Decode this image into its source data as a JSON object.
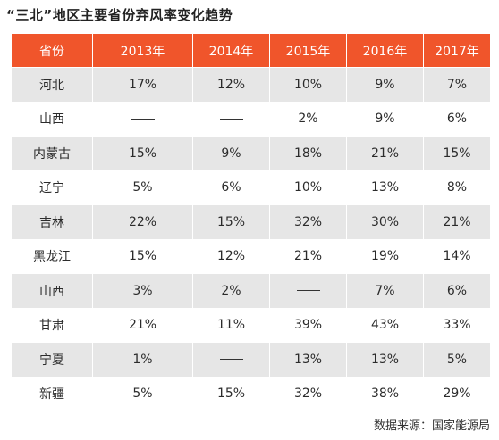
{
  "title": "“三北”地区主要省份弃风率变化趋势",
  "table": {
    "headers": [
      "省份",
      "2013年",
      "2014年",
      "2015年",
      "2016年",
      "2017年"
    ],
    "rows": [
      [
        "河北",
        "17%",
        "12%",
        "10%",
        "9%",
        "7%"
      ],
      [
        "山西",
        "—",
        "—",
        "2%",
        "9%",
        "6%"
      ],
      [
        "内蒙古",
        "15%",
        "9%",
        "18%",
        "21%",
        "15%"
      ],
      [
        "辽宁",
        "5%",
        "6%",
        "10%",
        "13%",
        "8%"
      ],
      [
        "吉林",
        "22%",
        "15%",
        "32%",
        "30%",
        "21%"
      ],
      [
        "黑龙江",
        "15%",
        "12%",
        "21%",
        "19%",
        "14%"
      ],
      [
        "山西",
        "3%",
        "2%",
        "—",
        "7%",
        "6%"
      ],
      [
        "甘肃",
        "21%",
        "11%",
        "39%",
        "43%",
        "33%"
      ],
      [
        "宁夏",
        "1%",
        "—",
        "13%",
        "13%",
        "5%"
      ],
      [
        "新疆",
        "5%",
        "15%",
        "32%",
        "38%",
        "29%"
      ]
    ]
  },
  "source": "数据来源：国家能源局",
  "colors": {
    "header_bg": "#f0552b",
    "header_text": "#ffffff",
    "shaded_row_bg": "#e6e6e6"
  }
}
